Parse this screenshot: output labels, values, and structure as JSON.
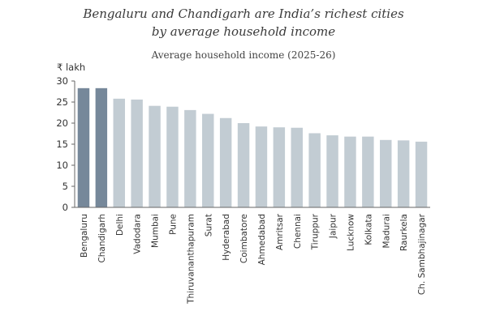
{
  "colors": {
    "highlight": "#76889a",
    "bar": "#c2ccd3",
    "axis": "#666666",
    "text": "#333333"
  },
  "chart_data": {
    "type": "bar",
    "title": "Bengaluru and Chandigarh are India’s richest cities by average household income",
    "title_lines": [
      "Bengaluru and Chandigarh are India’s richest cities",
      "by average household income"
    ],
    "subtitle": "Average household income (2025-26)",
    "ylabel": "₹ lakh",
    "ylim": [
      0,
      30
    ],
    "yticks": [
      0,
      5,
      10,
      15,
      20,
      25,
      30
    ],
    "grid": false,
    "categories": [
      "Bengaluru",
      "Chandigarh",
      "Delhi",
      "Vadodara",
      "Mumbai",
      "Pune",
      "Thiruvananthapuram",
      "Surat",
      "Hyderabad",
      "Coimbatore",
      "Ahmedabad",
      "Amritsar",
      "Chennai",
      "Tiruppur",
      "Jaipur",
      "Lucknow",
      "Kolkata",
      "Madurai",
      "Raurkela",
      "Ch. Sambhajinagar"
    ],
    "values": [
      28.3,
      28.3,
      25.8,
      25.6,
      24.1,
      23.9,
      23.1,
      22.2,
      21.2,
      20.0,
      19.2,
      19.0,
      18.9,
      17.6,
      17.1,
      16.8,
      16.8,
      16.0,
      15.9,
      15.6
    ],
    "highlighted": [
      "Bengaluru",
      "Chandigarh"
    ]
  }
}
